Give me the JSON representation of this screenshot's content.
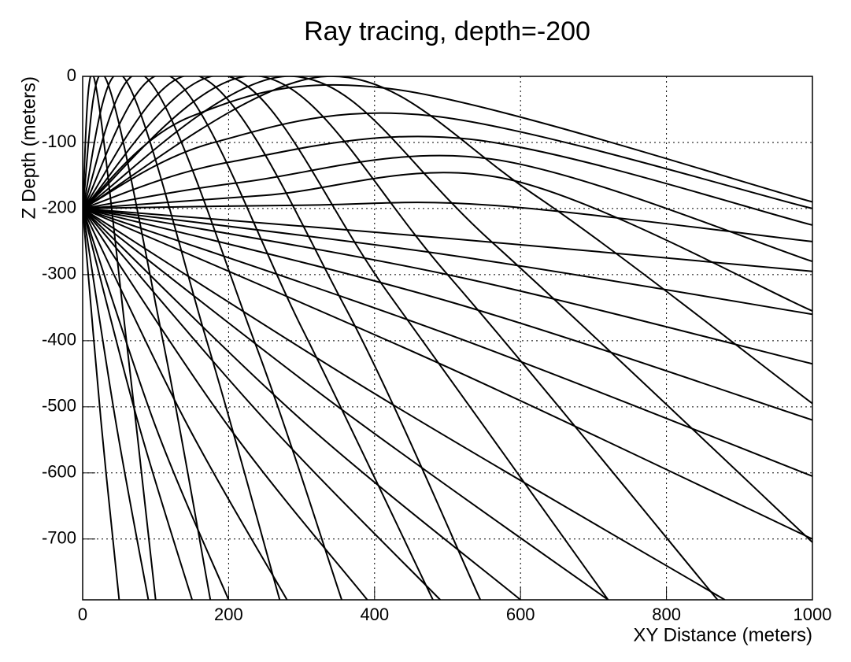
{
  "chart_data": {
    "type": "line",
    "title": "Ray tracing, depth=-200",
    "x_label": "XY Distance (meters)",
    "y_label": "Z Depth (meters)",
    "xlim": [
      0,
      1000
    ],
    "ylim": [
      -792,
      0
    ],
    "xticks": [
      0,
      200,
      400,
      600,
      800,
      1000
    ],
    "yticks": [
      0,
      -100,
      -200,
      -300,
      -400,
      -500,
      -600,
      -700
    ],
    "grid": true,
    "color": "#000000",
    "series": [
      {
        "x": [
          0,
          15,
          60,
          100
        ],
        "values": [
          -200,
          0,
          -400,
          -792
        ]
      },
      {
        "x": [
          0,
          30,
          110,
          175
        ],
        "values": [
          -200,
          0,
          -400,
          -792
        ]
      },
      {
        "x": [
          0,
          55,
          170,
          270
        ],
        "values": [
          -200,
          0,
          -400,
          -792
        ]
      },
      {
        "x": [
          0,
          85,
          235,
          355
        ],
        "values": [
          -200,
          0,
          -400,
          -792
        ]
      },
      {
        "x": [
          0,
          120,
          300,
          480
        ],
        "values": [
          -200,
          0,
          -380,
          -792
        ]
      },
      {
        "x": [
          0,
          160,
          360,
          545
        ],
        "values": [
          -200,
          0,
          -350,
          -792
        ]
      },
      {
        "x": [
          0,
          200,
          420,
          720
        ],
        "values": [
          -200,
          0,
          -330,
          -792
        ]
      },
      {
        "x": [
          0,
          245,
          500,
          870
        ],
        "values": [
          -200,
          0,
          -300,
          -792
        ]
      },
      {
        "x": [
          0,
          290,
          560,
          1000
        ],
        "values": [
          -200,
          0,
          -250,
          -705
        ]
      },
      {
        "x": [
          0,
          335,
          620,
          1000
        ],
        "values": [
          -200,
          0,
          -180,
          -495
        ]
      },
      {
        "x": [
          0,
          150,
          430,
          1000
        ],
        "values": [
          -200,
          -60,
          -20,
          -190
        ]
      },
      {
        "x": [
          0,
          180,
          480,
          1000
        ],
        "values": [
          -200,
          -100,
          -60,
          -200
        ]
      },
      {
        "x": [
          0,
          200,
          530,
          1000
        ],
        "values": [
          -200,
          -130,
          -95,
          -225
        ]
      },
      {
        "x": [
          0,
          220,
          560,
          1000
        ],
        "values": [
          -200,
          -160,
          -125,
          -280
        ]
      },
      {
        "x": [
          0,
          250,
          580,
          1000
        ],
        "values": [
          -200,
          -180,
          -155,
          -355
        ]
      },
      {
        "x": [
          0,
          300,
          560,
          1000
        ],
        "values": [
          -200,
          -195,
          -195,
          -250
        ]
      },
      {
        "x": [
          0,
          500,
          1000
        ],
        "values": [
          -200,
          -245,
          -295
        ]
      },
      {
        "x": [
          0,
          500,
          1000
        ],
        "values": [
          -200,
          -270,
          -360
        ]
      },
      {
        "x": [
          0,
          500,
          1000
        ],
        "values": [
          -200,
          -300,
          -435
        ]
      },
      {
        "x": [
          0,
          500,
          1000
        ],
        "values": [
          -200,
          -340,
          -520
        ]
      },
      {
        "x": [
          0,
          500,
          1000
        ],
        "values": [
          -200,
          -390,
          -605
        ]
      },
      {
        "x": [
          0,
          500,
          1000
        ],
        "values": [
          -200,
          -440,
          -700
        ]
      },
      {
        "x": [
          0,
          400,
          880
        ],
        "values": [
          -200,
          -480,
          -792
        ]
      },
      {
        "x": [
          0,
          350,
          720
        ],
        "values": [
          -200,
          -500,
          -792
        ]
      },
      {
        "x": [
          0,
          300,
          600
        ],
        "values": [
          -200,
          -520,
          -792
        ]
      },
      {
        "x": [
          0,
          250,
          490
        ],
        "values": [
          -200,
          -520,
          -792
        ]
      },
      {
        "x": [
          0,
          200,
          390
        ],
        "values": [
          -200,
          -530,
          -792
        ]
      },
      {
        "x": [
          0,
          140,
          280
        ],
        "values": [
          -200,
          -520,
          -792
        ]
      },
      {
        "x": [
          0,
          100,
          200
        ],
        "values": [
          -200,
          -530,
          -792
        ]
      },
      {
        "x": [
          0,
          75,
          150
        ],
        "values": [
          -200,
          -520,
          -792
        ]
      },
      {
        "x": [
          0,
          45,
          90
        ],
        "values": [
          -200,
          -520,
          -792
        ]
      },
      {
        "x": [
          0,
          25,
          50
        ],
        "values": [
          -200,
          -520,
          -792
        ]
      }
    ]
  }
}
